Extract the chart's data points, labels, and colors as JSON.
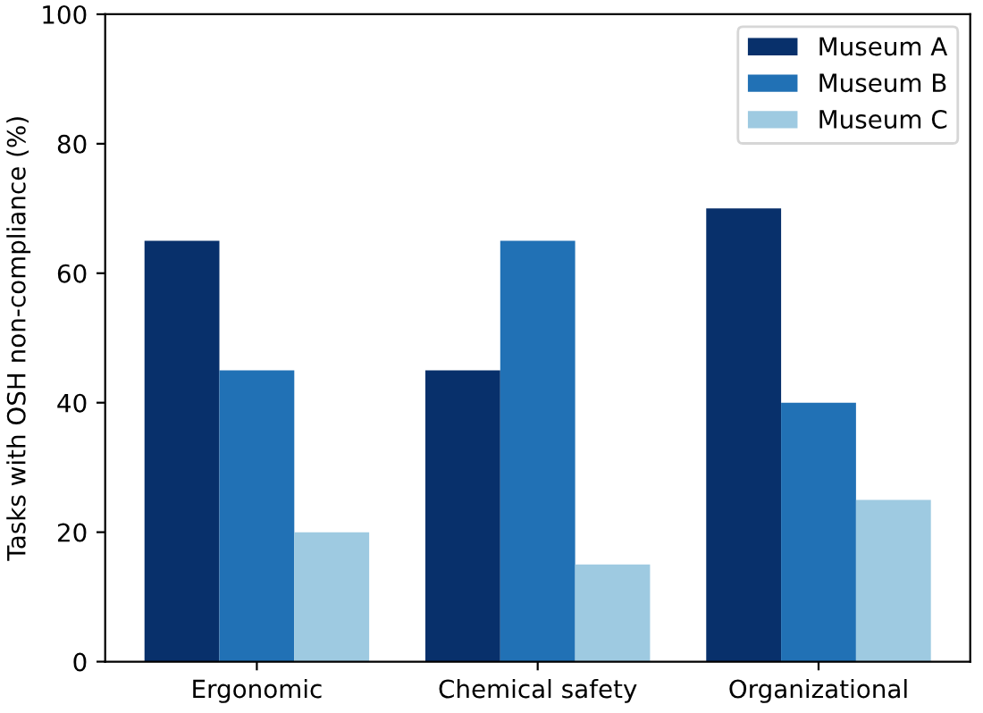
{
  "chart_data": {
    "type": "bar",
    "ylabel": "Tasks with OSH non-compliance (%)",
    "categories": [
      "Ergonomic",
      "Chemical safety",
      "Organizational"
    ],
    "series": [
      {
        "name": "Museum A",
        "color": "#08306b",
        "values": [
          65,
          45,
          70
        ]
      },
      {
        "name": "Museum B",
        "color": "#2171b5",
        "values": [
          45,
          65,
          40
        ]
      },
      {
        "name": "Museum C",
        "color": "#9ecae1",
        "values": [
          20,
          15,
          25
        ]
      }
    ],
    "ylim": [
      0,
      100
    ],
    "yticks": [
      0,
      20,
      40,
      60,
      80,
      100
    ],
    "legend": "top right"
  }
}
